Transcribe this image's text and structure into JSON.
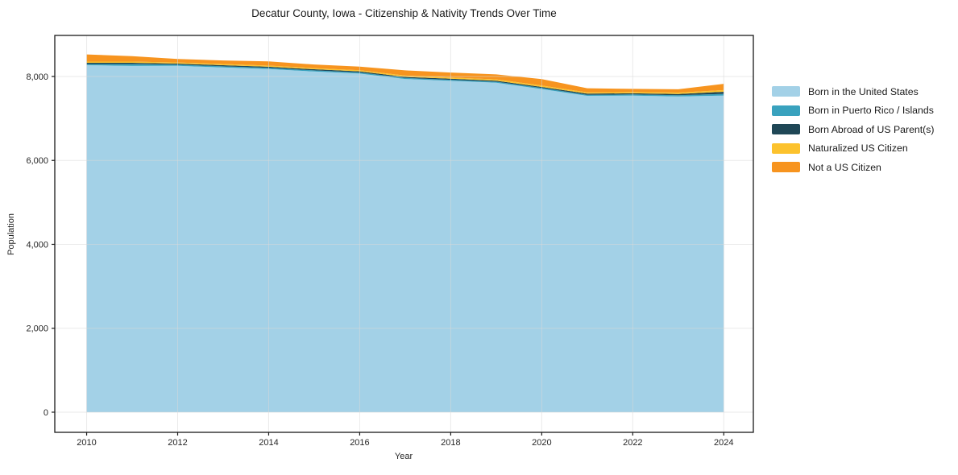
{
  "chart_data": {
    "type": "area",
    "stacked": true,
    "title": "Decatur County, Iowa - Citizenship & Nativity Trends Over Time",
    "xlabel": "Year",
    "ylabel": "Population",
    "grid": true,
    "legend_position": "right",
    "x": [
      2010,
      2011,
      2012,
      2013,
      2014,
      2015,
      2016,
      2017,
      2018,
      2019,
      2020,
      2021,
      2022,
      2023,
      2024
    ],
    "series": [
      {
        "name": "Born in the United States",
        "color": "#A3D1E7",
        "values": [
          8270,
          8250,
          8253,
          8215,
          8177,
          8119,
          8069,
          7940,
          7896,
          7850,
          7700,
          7540,
          7545,
          7525,
          7545
        ]
      },
      {
        "name": "Born in Puerto Rico / Islands",
        "color": "#39A2BE",
        "values": [
          25,
          45,
          28,
          27,
          27,
          27,
          27,
          25,
          25,
          25,
          25,
          25,
          27,
          28,
          40
        ]
      },
      {
        "name": "Born Abroad of US Parent(s)",
        "color": "#1F4756",
        "values": [
          30,
          30,
          26,
          27,
          27,
          27,
          27,
          25,
          25,
          25,
          25,
          25,
          27,
          30,
          50
        ]
      },
      {
        "name": "Naturalized US Citizen",
        "color": "#FCC22D",
        "values": [
          30,
          30,
          26,
          27,
          27,
          27,
          27,
          30,
          30,
          30,
          35,
          30,
          30,
          32,
          40
        ]
      },
      {
        "name": "Not a US Citizen",
        "color": "#F7941F",
        "values": [
          170,
          130,
          84,
          86,
          100,
          86,
          84,
          126,
          118,
          119,
          152,
          100,
          75,
          80,
          150
        ]
      }
    ],
    "xticks": [
      2010,
      2012,
      2014,
      2016,
      2018,
      2020,
      2022,
      2024
    ],
    "yticks": [
      0,
      2000,
      4000,
      6000,
      8000
    ],
    "xlim": [
      2009.3,
      2024.65
    ],
    "ylim": [
      -480,
      8978
    ],
    "colors": {
      "grid": "rgba(217,217,217,0.55)",
      "spine": "#1a1a1a",
      "tick_label": "#262626"
    }
  }
}
